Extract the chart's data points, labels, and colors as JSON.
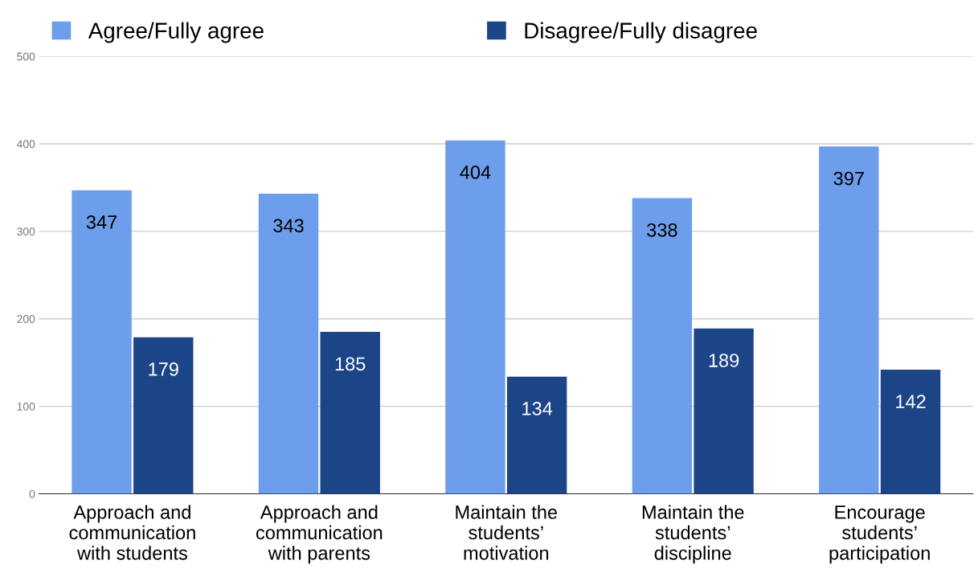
{
  "chart_data": {
    "type": "bar",
    "categories": [
      "Approach and\ncommunication\nwith students",
      "Approach and\ncommunication\nwith parents",
      "Maintain the\nstudents’\nmotivation",
      "Maintain the\nstudents’\ndiscipline",
      "Encourage\nstudents’\nparticipation"
    ],
    "series": [
      {
        "name": "Agree/Fully agree",
        "color": "#6d9eeb",
        "values": [
          347,
          343,
          404,
          338,
          397
        ]
      },
      {
        "name": "Disagree/Fully disagree",
        "color": "#1c4587",
        "values": [
          179,
          185,
          134,
          189,
          142
        ]
      }
    ],
    "ylim": [
      0,
      500
    ],
    "yticks": [
      0,
      100,
      200,
      300,
      400,
      500
    ],
    "grid": "y",
    "legend": "top left",
    "data_labels": true
  }
}
